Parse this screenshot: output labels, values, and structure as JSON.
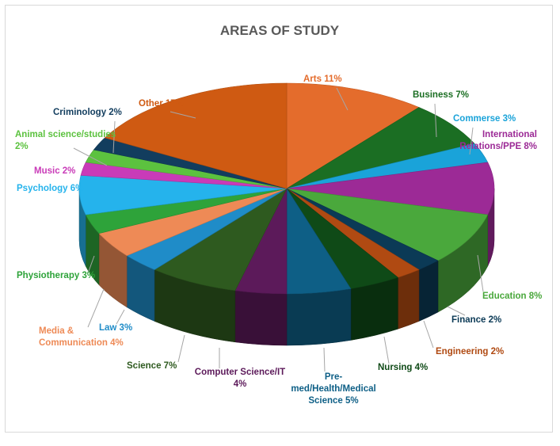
{
  "chart_data": {
    "type": "pie",
    "title": "AREAS OF STUDY",
    "slices": [
      {
        "label": "Arts",
        "pct_text": "11%",
        "value": 11,
        "color": "#e46c2c",
        "label_color": "#e46c2c"
      },
      {
        "label": "Business",
        "pct_text": "7%",
        "value": 7,
        "color": "#1b6e23",
        "label_color": "#1b6e23"
      },
      {
        "label": "Commerse",
        "pct_text": "3%",
        "value": 3,
        "color": "#1aa3d9",
        "label_color": "#1aa3d9"
      },
      {
        "label": "International Relations/PPE",
        "pct_text": "8%",
        "value": 8,
        "color": "#9c2a96",
        "label_color": "#9c2a96"
      },
      {
        "label": "Education",
        "pct_text": "8%",
        "value": 8,
        "color": "#4aa83c",
        "label_color": "#4aa83c"
      },
      {
        "label": "Finance",
        "pct_text": "2%",
        "value": 2,
        "color": "#0b3a56",
        "label_color": "#0b3a56"
      },
      {
        "label": "Engineering",
        "pct_text": "2%",
        "value": 2,
        "color": "#b04a12",
        "label_color": "#b04a12"
      },
      {
        "label": "Nursing",
        "pct_text": "4%",
        "value": 4,
        "color": "#0f4a17",
        "label_color": "#0f4a17"
      },
      {
        "label": "Pre-med/Health/Medical Science",
        "pct_text": "5%",
        "value": 5,
        "color": "#0e5f86",
        "label_color": "#0e5f86"
      },
      {
        "label": "Computer Science/IT",
        "pct_text": "4%",
        "value": 4,
        "color": "#5c1a5a",
        "label_color": "#5c1a5a"
      },
      {
        "label": "Science",
        "pct_text": "7%",
        "value": 7,
        "color": "#2e5a1f",
        "label_color": "#2e5a1f"
      },
      {
        "label": "Law",
        "pct_text": "3%",
        "value": 3,
        "color": "#1f8cc8",
        "label_color": "#1f8cc8"
      },
      {
        "label": "Media & Communication",
        "pct_text": "4%",
        "value": 4,
        "color": "#ee8a56",
        "label_color": "#ee8a56"
      },
      {
        "label": "Physiotherapy",
        "pct_text": "3%",
        "value": 3,
        "color": "#2ea33a",
        "label_color": "#2ea33a"
      },
      {
        "label": "Psychology",
        "pct_text": "6%",
        "value": 6,
        "color": "#25b3ec",
        "label_color": "#25b3ec"
      },
      {
        "label": "Music",
        "pct_text": "2%",
        "value": 2,
        "color": "#c93bb8",
        "label_color": "#c93bb8"
      },
      {
        "label": "Animal science/studies",
        "pct_text": "2%",
        "value": 2,
        "color": "#5cc23f",
        "label_color": "#5cc23f"
      },
      {
        "label": "Criminology",
        "pct_text": "2%",
        "value": 2,
        "color": "#123d5e",
        "label_color": "#123d5e"
      },
      {
        "label": "Other",
        "pct_text": "17%",
        "value": 17,
        "color": "#cf5a12",
        "label_color": "#cf5a12"
      }
    ]
  },
  "labels": [
    {
      "name": "arts",
      "lines": [
        "Arts 11%"
      ]
    },
    {
      "name": "business",
      "lines": [
        "Business 7%"
      ]
    },
    {
      "name": "commerse",
      "lines": [
        "Commerse 3%"
      ]
    },
    {
      "name": "international-relations",
      "lines": [
        "International",
        "Relations/PPE 8%"
      ]
    },
    {
      "name": "education",
      "lines": [
        "Education 8%"
      ]
    },
    {
      "name": "finance",
      "lines": [
        "Finance 2%"
      ]
    },
    {
      "name": "engineering",
      "lines": [
        "Engineering 2%"
      ]
    },
    {
      "name": "nursing",
      "lines": [
        "Nursing 4%"
      ]
    },
    {
      "name": "pre-med",
      "lines": [
        "Pre-",
        "med/Health/Medical",
        "Science 5%"
      ]
    },
    {
      "name": "computer-science",
      "lines": [
        "Computer Science/IT",
        "4%"
      ]
    },
    {
      "name": "science",
      "lines": [
        "Science 7%"
      ]
    },
    {
      "name": "law",
      "lines": [
        "Law 3%"
      ]
    },
    {
      "name": "media",
      "lines": [
        "Media &",
        "Communication 4%"
      ]
    },
    {
      "name": "physiotherapy",
      "lines": [
        "Physiotherapy 3%"
      ]
    },
    {
      "name": "psychology",
      "lines": [
        "Psychology 6%"
      ]
    },
    {
      "name": "music",
      "lines": [
        "Music 2%"
      ]
    },
    {
      "name": "animal-science",
      "lines": [
        "Animal science/studies",
        "2%"
      ]
    },
    {
      "name": "criminology",
      "lines": [
        "Criminology 2%"
      ]
    },
    {
      "name": "other",
      "lines": [
        "Other 17%"
      ]
    }
  ]
}
